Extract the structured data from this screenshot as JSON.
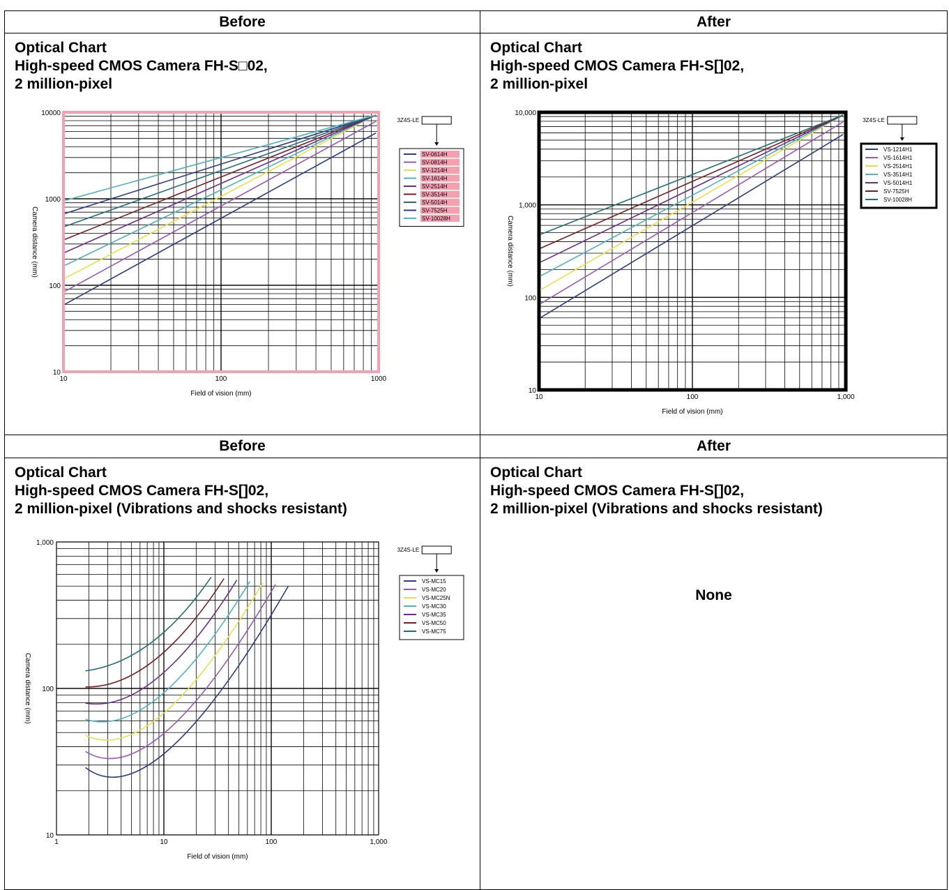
{
  "table": {
    "headers": [
      "Before",
      "After",
      "Before",
      "After"
    ]
  },
  "cells": [
    {
      "title": [
        "Optical Chart",
        "High-speed CMOS Camera FH-S□02,",
        "2 million-pixel"
      ],
      "chart": {
        "box_label": "3Z4S-LE",
        "xlabel": "Field of vision (mm)",
        "ylabel": "Camera distance (mm)",
        "xticks": [
          "10",
          "100",
          "1000"
        ],
        "yticks": [
          "10",
          "100",
          "1000",
          "10000"
        ],
        "frame_color": "#f4a0b0",
        "legend_highlight": "#f4a0b0",
        "legend": [
          {
            "name": "SV-0614H",
            "color": "#2b3a8c"
          },
          {
            "name": "SV-0814H",
            "color": "#9b59b6"
          },
          {
            "name": "SV-1214H",
            "color": "#e8e04a"
          },
          {
            "name": "SV-1614H",
            "color": "#4fb3bf"
          },
          {
            "name": "SV-2514H",
            "color": "#6a2c91"
          },
          {
            "name": "SV-3514H",
            "color": "#7b1e1e"
          },
          {
            "name": "SV-5014H",
            "color": "#1f6f78"
          },
          {
            "name": "SV-7525H",
            "color": "#2b3a8c"
          },
          {
            "name": "SV-10028H",
            "color": "#4fb3bf"
          }
        ]
      }
    },
    {
      "title": [
        "Optical Chart",
        "High-speed CMOS Camera FH-S[]02,",
        "2 million-pixel"
      ],
      "chart": {
        "box_label": "3Z4S-LE",
        "xlabel": "Field of vision (mm)",
        "ylabel": "Camera distance (mm)",
        "xticks": [
          "10",
          "100",
          "1,000"
        ],
        "yticks": [
          "10",
          "100",
          "1,000",
          "10,000"
        ],
        "frame_color": "#000000",
        "legend": [
          {
            "name": "VS-1214H1",
            "color": "#2b3a8c"
          },
          {
            "name": "VS-1614H1",
            "color": "#9b59b6"
          },
          {
            "name": "VS-2514H1",
            "color": "#e8e04a"
          },
          {
            "name": "VS-3514H1",
            "color": "#4fb3bf"
          },
          {
            "name": "VS-5014H1",
            "color": "#6a2c91"
          },
          {
            "name": "SV-7525H",
            "color": "#7b1e1e"
          },
          {
            "name": "SV-10028H",
            "color": "#1f6f78"
          }
        ]
      }
    },
    {
      "title": [
        "Optical Chart",
        "High-speed CMOS Camera FH-S[]02,",
        "2 million-pixel (Vibrations and shocks resistant)"
      ],
      "chart": {
        "box_label": "3Z4S-LE",
        "xlabel": "Field of vision (mm)",
        "ylabel": "Camera distance (mm)",
        "xticks": [
          "1",
          "10",
          "100",
          "1,000"
        ],
        "yticks": [
          "10",
          "100",
          "1,000"
        ],
        "frame_color": "#000000",
        "legend": [
          {
            "name": "VS-MC15",
            "color": "#2b3a8c"
          },
          {
            "name": "VS-MC20",
            "color": "#9b59b6"
          },
          {
            "name": "VS-MC25N",
            "color": "#e8e04a"
          },
          {
            "name": "VS-MC30",
            "color": "#4fb3bf"
          },
          {
            "name": "VS-MC35",
            "color": "#6a2c91"
          },
          {
            "name": "VS-MC50",
            "color": "#7b1e1e"
          },
          {
            "name": "VS-MC75",
            "color": "#1f6f78"
          }
        ]
      }
    },
    {
      "title": [
        "Optical Chart",
        "High-speed CMOS Camera FH-S[]02,",
        "2 million-pixel (Vibrations and shocks resistant)"
      ],
      "none_text": "None"
    }
  ]
}
